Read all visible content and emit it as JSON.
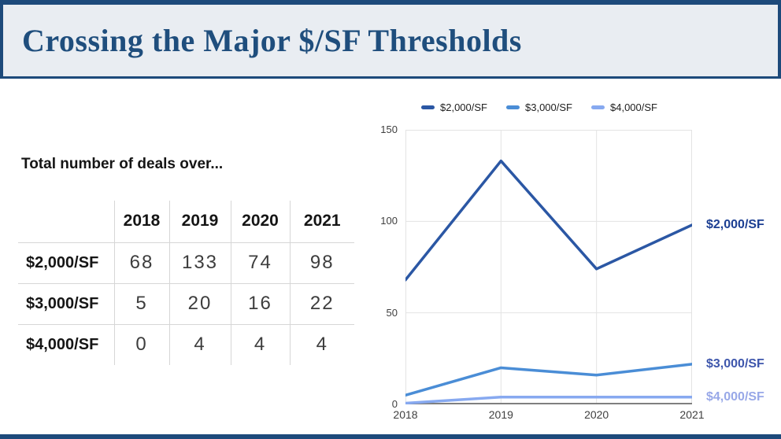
{
  "slide": {
    "title": "Crossing the Major $/SF Thresholds",
    "accent_color": "#1d4a7b",
    "header_bg": "#e9edf2"
  },
  "left_panel": {
    "heading": "Total number of deals over...",
    "table": {
      "columns": [
        "",
        "2018",
        "2019",
        "2020",
        "2021"
      ],
      "rows": [
        {
          "label": "$2,000/SF",
          "values": [
            "68",
            "133",
            "74",
            "98"
          ]
        },
        {
          "label": "$3,000/SF",
          "values": [
            "5",
            "20",
            "16",
            "22"
          ]
        },
        {
          "label": "$4,000/SF",
          "values": [
            "0",
            "4",
            "4",
            "4"
          ]
        }
      ]
    }
  },
  "chart_data": {
    "type": "line",
    "title": "",
    "categories": [
      "2018",
      "2019",
      "2020",
      "2021"
    ],
    "series": [
      {
        "name": "$2,000/SF",
        "values": [
          68,
          133,
          74,
          98
        ],
        "color": "#2b57a4",
        "label_color": "#1b3e92"
      },
      {
        "name": "$3,000/SF",
        "values": [
          5,
          20,
          16,
          22
        ],
        "color": "#4a8dd6",
        "label_color": "#3e56ac"
      },
      {
        "name": "$4,000/SF",
        "values": [
          0,
          4,
          4,
          4
        ],
        "color": "#87a9f0",
        "label_color": "#98a8e8"
      }
    ],
    "ylim": [
      0,
      150
    ],
    "y_ticks": [
      0,
      50,
      100,
      150
    ],
    "legend_position": "top",
    "grid": true,
    "end_labels": true,
    "grid_color": "#e3e3e3",
    "axis_color": "#7f7f7f"
  }
}
